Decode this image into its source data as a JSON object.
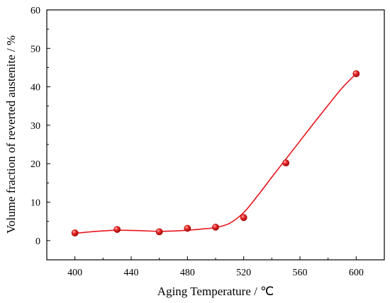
{
  "chart_data": {
    "type": "scatter",
    "title": "",
    "xlabel": "Aging Temperature / ℃",
    "ylabel": "Volume fraction of reverted austenite / %",
    "xlim": [
      380,
      620
    ],
    "ylim": [
      -5,
      60
    ],
    "x_ticks": [
      400,
      440,
      480,
      520,
      560,
      600
    ],
    "y_ticks": [
      0,
      10,
      20,
      30,
      40,
      50,
      60
    ],
    "grid": false,
    "legend": "none",
    "series": [
      {
        "color": "#e8141c",
        "marker": "sphere",
        "line": "smooth",
        "points": [
          {
            "x": 400,
            "y": 2.0
          },
          {
            "x": 430,
            "y": 2.9
          },
          {
            "x": 460,
            "y": 2.3
          },
          {
            "x": 480,
            "y": 3.2
          },
          {
            "x": 500,
            "y": 3.5
          },
          {
            "x": 520,
            "y": 6.0
          },
          {
            "x": 550,
            "y": 20.2
          },
          {
            "x": 600,
            "y": 43.4
          }
        ],
        "fit_curve": [
          {
            "x": 400,
            "y": 1.9
          },
          {
            "x": 415,
            "y": 2.4
          },
          {
            "x": 430,
            "y": 2.7
          },
          {
            "x": 445,
            "y": 2.6
          },
          {
            "x": 460,
            "y": 2.4
          },
          {
            "x": 470,
            "y": 2.5
          },
          {
            "x": 480,
            "y": 2.7
          },
          {
            "x": 490,
            "y": 3.0
          },
          {
            "x": 500,
            "y": 3.4
          },
          {
            "x": 510,
            "y": 4.5
          },
          {
            "x": 520,
            "y": 7.3
          },
          {
            "x": 530,
            "y": 11.7
          },
          {
            "x": 540,
            "y": 16.5
          },
          {
            "x": 550,
            "y": 21.2
          },
          {
            "x": 560,
            "y": 25.9
          },
          {
            "x": 570,
            "y": 30.6
          },
          {
            "x": 580,
            "y": 35.2
          },
          {
            "x": 590,
            "y": 39.7
          },
          {
            "x": 600,
            "y": 43.4
          }
        ]
      }
    ]
  }
}
